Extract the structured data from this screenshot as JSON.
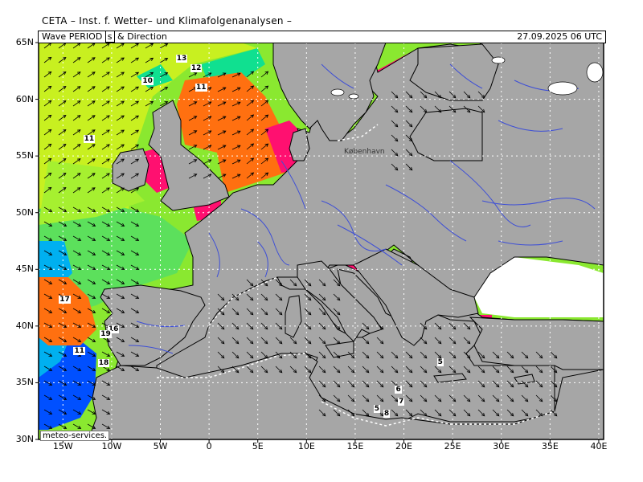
{
  "header": {
    "text": "CETA – Inst. f. Wetter– und Klimafolgenanalysen –"
  },
  "titlebar": {
    "product_a": "Wave PERIOD ",
    "unit": "s",
    "product_b": " & Direction",
    "datetime": "27.09.2025 06 UTC"
  },
  "credit": "meteo-services.",
  "place_label": "København",
  "map": {
    "lon_range": [
      -17.5,
      40.5
    ],
    "lat_range": [
      30,
      65
    ],
    "lat_labels": [
      "65N",
      "60N",
      "55N",
      "50N",
      "45N",
      "40N",
      "35N",
      "30N"
    ],
    "lon_labels": [
      "15W",
      "10W",
      "5W",
      "0",
      "5E",
      "10E",
      "15E",
      "20E",
      "25E",
      "30E",
      "35E",
      "40E"
    ],
    "colors": {
      "land": "#a6a6a6",
      "lake": "#ffffff",
      "border": "#000000",
      "river": "#3e4fd6",
      "period_4_5": "#ff1070",
      "period_6_7": "#ff7010",
      "period_8_9": "#ff9a20",
      "period_10": "#8ae830",
      "period_11": "#c8f020",
      "period_12": "#5ce05c",
      "period_13": "#10e090",
      "period_15": "#00b0f0",
      "period_17": "#0050ff",
      "baltic_magenta": "#ff00ff"
    },
    "period_values": [
      {
        "v": "13",
        "lon": -3.0,
        "lat": 63.6
      },
      {
        "v": "12",
        "lon": -1.5,
        "lat": 62.7
      },
      {
        "v": "10",
        "lon": -6.5,
        "lat": 61.6
      },
      {
        "v": "11",
        "lon": -1.0,
        "lat": 61.0
      },
      {
        "v": "11",
        "lon": -12.5,
        "lat": 56.5
      },
      {
        "v": "17",
        "lon": -15.0,
        "lat": 42.3
      },
      {
        "v": "16",
        "lon": -10.0,
        "lat": 39.7
      },
      {
        "v": "19",
        "lon": -10.8,
        "lat": 39.3
      },
      {
        "v": "11",
        "lon": -13.5,
        "lat": 37.8
      },
      {
        "v": "18",
        "lon": -11.0,
        "lat": 36.7
      },
      {
        "v": "5",
        "lon": 23.8,
        "lat": 36.8
      },
      {
        "v": "6",
        "lon": 19.5,
        "lat": 34.4
      },
      {
        "v": "7",
        "lon": 19.8,
        "lat": 33.3
      },
      {
        "v": "5",
        "lon": 17.3,
        "lat": 32.7
      },
      {
        "v": "8",
        "lon": 18.3,
        "lat": 32.3
      }
    ]
  }
}
